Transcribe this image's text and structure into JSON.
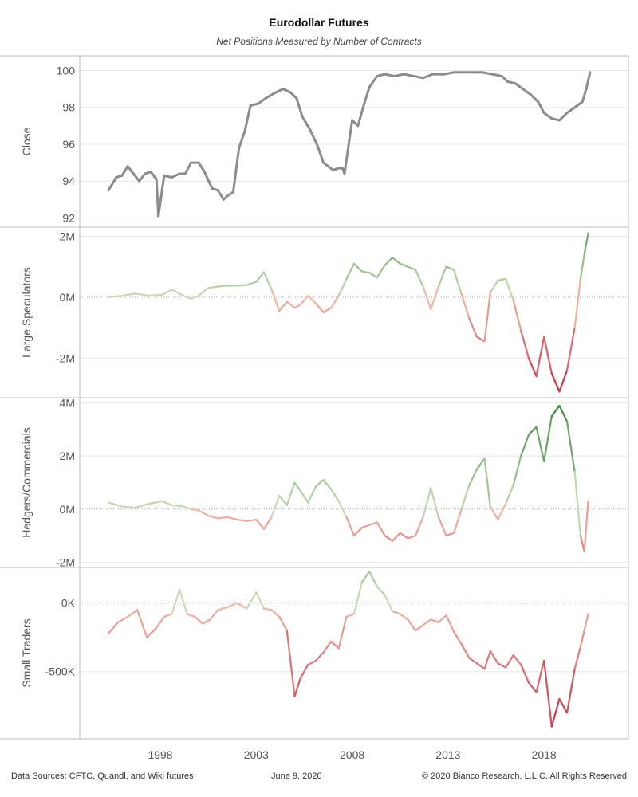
{
  "title": "Eurodollar Futures",
  "subtitle": "Net Positions Measured by Number of Contracts",
  "footer": {
    "sources": "Data Sources: CFTC, Quandl, and Wiki futures",
    "date": "June 9, 2020",
    "copyright": "© 2020 Bianco Research, L.L.C. All Rights Reserved"
  },
  "colors": {
    "close_line": "#8c8c8c",
    "positive_light": "#c9dcb5",
    "positive_dark": "#2e7d32",
    "negative_light": "#f3b9a5",
    "negative_dark": "#c21d3b",
    "grid": "#e6e6e6",
    "border": "#bdbdbd"
  },
  "chart_data": {
    "type": "line",
    "x_axis": {
      "ticks": [
        "1998",
        "2003",
        "2008",
        "2013",
        "2018"
      ],
      "tick_values": [
        1998,
        2003,
        2008,
        2013,
        2018
      ],
      "xlim": [
        1993.8,
        2022.4
      ]
    },
    "panels": [
      {
        "ylabel": "Close",
        "ylim": [
          91.5,
          100.8
        ],
        "ticks": [
          92,
          94,
          96,
          98,
          100
        ],
        "tick_labels": [
          "92",
          "94",
          "96",
          "98",
          "100"
        ],
        "zero_line": false,
        "color_mode": "gray",
        "series": [
          {
            "x": [
              1995.3,
              1995.7,
              1996.0,
              1996.3,
              1996.6,
              1996.9,
              1997.2,
              1997.5,
              1997.8,
              1997.9,
              1998.2,
              1998.6,
              1999.0,
              1999.3,
              1999.6,
              2000.0,
              2000.3,
              2000.7,
              2001.0,
              2001.3,
              2001.5,
              2001.8,
              2002.1,
              2002.4,
              2002.7,
              2003.1,
              2003.5,
              2004.0,
              2004.4,
              2004.8,
              2005.1,
              2005.4,
              2005.8,
              2006.2,
              2006.5,
              2007.0,
              2007.3,
              2007.5,
              2007.6,
              2008.0,
              2008.3,
              2008.6,
              2008.9,
              2009.3,
              2009.7,
              2010.2,
              2010.7,
              2011.2,
              2011.7,
              2012.2,
              2012.8,
              2013.3,
              2013.8,
              2014.3,
              2014.8,
              2015.3,
              2015.8,
              2016.1,
              2016.5,
              2016.9,
              2017.3,
              2017.7,
              2018.0,
              2018.4,
              2018.8,
              2019.2,
              2019.6,
              2020.0,
              2020.2,
              2020.4
            ],
            "y": [
              93.5,
              94.2,
              94.3,
              94.8,
              94.4,
              94.0,
              94.4,
              94.5,
              94.1,
              92.1,
              94.3,
              94.2,
              94.4,
              94.4,
              95.0,
              95.0,
              94.5,
              93.6,
              93.5,
              93.0,
              93.2,
              93.4,
              95.8,
              96.7,
              98.1,
              98.2,
              98.5,
              98.8,
              99.0,
              98.8,
              98.5,
              97.5,
              96.8,
              95.9,
              95.0,
              94.6,
              94.7,
              94.7,
              94.4,
              97.3,
              97.0,
              98.1,
              99.1,
              99.7,
              99.8,
              99.7,
              99.8,
              99.7,
              99.6,
              99.8,
              99.8,
              99.9,
              99.9,
              99.9,
              99.9,
              99.8,
              99.7,
              99.4,
              99.3,
              99.0,
              98.7,
              98.3,
              97.7,
              97.4,
              97.3,
              97.7,
              98.0,
              98.3,
              99.0,
              99.9
            ]
          }
        ]
      },
      {
        "ylabel": "Large Speculators",
        "ylim": [
          -3.3,
          2.3
        ],
        "ticks": [
          -2,
          0,
          2
        ],
        "tick_labels": [
          "-2M",
          "0M",
          "2M"
        ],
        "zero_line": true,
        "color_mode": "diverging",
        "series": [
          {
            "x": [
              1995.3,
              1996.0,
              1996.7,
              1997.4,
              1998.1,
              1998.6,
              1999.2,
              1999.6,
              2000.0,
              2000.5,
              2001.0,
              2001.5,
              2002.0,
              2002.5,
              2003.0,
              2003.4,
              2003.8,
              2004.2,
              2004.6,
              2005.0,
              2005.3,
              2005.7,
              2006.1,
              2006.5,
              2006.9,
              2007.3,
              2007.7,
              2008.1,
              2008.5,
              2008.9,
              2009.3,
              2009.7,
              2010.1,
              2010.5,
              2010.9,
              2011.3,
              2011.7,
              2012.1,
              2012.5,
              2012.9,
              2013.3,
              2013.7,
              2014.1,
              2014.5,
              2014.9,
              2015.2,
              2015.6,
              2016.0,
              2016.4,
              2016.8,
              2017.2,
              2017.6,
              2018.0,
              2018.4,
              2018.8,
              2019.2,
              2019.6,
              2019.9,
              2020.1,
              2020.3
            ],
            "y": [
              0.0,
              0.05,
              0.12,
              0.05,
              0.08,
              0.25,
              0.05,
              -0.05,
              0.05,
              0.3,
              0.35,
              0.38,
              0.38,
              0.4,
              0.5,
              0.82,
              0.25,
              -0.45,
              -0.15,
              -0.35,
              -0.25,
              0.05,
              -0.2,
              -0.5,
              -0.35,
              0.05,
              0.6,
              1.1,
              0.85,
              0.8,
              0.65,
              1.05,
              1.3,
              1.1,
              1.0,
              0.9,
              0.35,
              -0.4,
              0.35,
              1.0,
              0.9,
              0.1,
              -0.7,
              -1.3,
              -1.45,
              0.15,
              0.55,
              0.6,
              -0.1,
              -1.1,
              -2.0,
              -2.6,
              -1.3,
              -2.5,
              -3.1,
              -2.4,
              -1.0,
              0.6,
              1.4,
              2.1
            ]
          }
        ]
      },
      {
        "ylabel": "Hedgers/Commercials",
        "ylim": [
          -2.2,
          4.2
        ],
        "ticks": [
          -2,
          0,
          2,
          4
        ],
        "tick_labels": [
          "-2M",
          "0M",
          "2M",
          "4M"
        ],
        "zero_line": true,
        "color_mode": "diverging",
        "series": [
          {
            "x": [
              1995.3,
              1996.0,
              1996.7,
              1997.4,
              1998.1,
              1998.6,
              1999.2,
              1999.6,
              2000.0,
              2000.5,
              2001.0,
              2001.5,
              2002.0,
              2002.5,
              2003.0,
              2003.4,
              2003.8,
              2004.2,
              2004.6,
              2005.0,
              2005.3,
              2005.7,
              2006.1,
              2006.5,
              2006.9,
              2007.3,
              2007.7,
              2008.1,
              2008.5,
              2008.9,
              2009.3,
              2009.7,
              2010.1,
              2010.5,
              2010.9,
              2011.3,
              2011.7,
              2012.1,
              2012.5,
              2012.9,
              2013.3,
              2013.7,
              2014.1,
              2014.5,
              2014.9,
              2015.2,
              2015.6,
              2016.0,
              2016.4,
              2016.8,
              2017.2,
              2017.6,
              2018.0,
              2018.4,
              2018.8,
              2019.2,
              2019.6,
              2019.9,
              2020.1,
              2020.3
            ],
            "y": [
              0.25,
              0.1,
              0.05,
              0.2,
              0.3,
              0.15,
              0.1,
              0.0,
              -0.05,
              -0.25,
              -0.35,
              -0.3,
              -0.4,
              -0.45,
              -0.4,
              -0.75,
              -0.3,
              0.5,
              0.15,
              1.0,
              0.7,
              0.25,
              0.85,
              1.1,
              0.75,
              0.3,
              -0.3,
              -1.0,
              -0.7,
              -0.6,
              -0.5,
              -1.0,
              -1.2,
              -0.9,
              -1.1,
              -1.0,
              -0.3,
              0.8,
              -0.3,
              -1.0,
              -0.9,
              0.0,
              0.9,
              1.5,
              1.9,
              0.1,
              -0.4,
              0.2,
              0.9,
              2.0,
              2.8,
              3.1,
              1.8,
              3.5,
              3.9,
              3.3,
              1.4,
              -1.0,
              -1.6,
              0.3
            ]
          }
        ]
      },
      {
        "ylabel": "Small Traders",
        "ylim": [
          -990,
          260
        ],
        "ticks": [
          -500,
          0
        ],
        "tick_labels": [
          "-500K",
          "0K"
        ],
        "zero_line": true,
        "color_mode": "diverging",
        "series": [
          {
            "x": [
              1995.3,
              1995.8,
              1996.3,
              1996.8,
              1997.3,
              1997.8,
              1998.2,
              1998.6,
              1999.0,
              1999.4,
              1999.8,
              2000.2,
              2000.6,
              2001.0,
              2001.5,
              2002.0,
              2002.5,
              2003.0,
              2003.4,
              2003.8,
              2004.2,
              2004.6,
              2005.0,
              2005.3,
              2005.7,
              2006.1,
              2006.5,
              2006.9,
              2007.3,
              2007.7,
              2008.1,
              2008.5,
              2008.9,
              2009.3,
              2009.7,
              2010.1,
              2010.5,
              2010.9,
              2011.3,
              2011.7,
              2012.1,
              2012.5,
              2012.9,
              2013.3,
              2013.7,
              2014.1,
              2014.5,
              2014.9,
              2015.2,
              2015.6,
              2016.0,
              2016.4,
              2016.8,
              2017.2,
              2017.6,
              2018.0,
              2018.4,
              2018.8,
              2019.2,
              2019.6,
              2019.9,
              2020.1,
              2020.3
            ],
            "y": [
              -220,
              -140,
              -100,
              -50,
              -250,
              -180,
              -100,
              -80,
              100,
              -80,
              -100,
              -150,
              -120,
              -50,
              -30,
              0,
              -40,
              80,
              -40,
              -50,
              -100,
              -200,
              -680,
              -550,
              -450,
              -420,
              -360,
              -280,
              -330,
              -100,
              -80,
              150,
              230,
              120,
              60,
              -60,
              -80,
              -120,
              -200,
              -160,
              -120,
              -140,
              -90,
              -210,
              -300,
              -400,
              -440,
              -480,
              -350,
              -440,
              -470,
              -380,
              -450,
              -580,
              -650,
              -420,
              -900,
              -700,
              -800,
              -480,
              -320,
              -200,
              -80
            ]
          }
        ]
      }
    ]
  }
}
